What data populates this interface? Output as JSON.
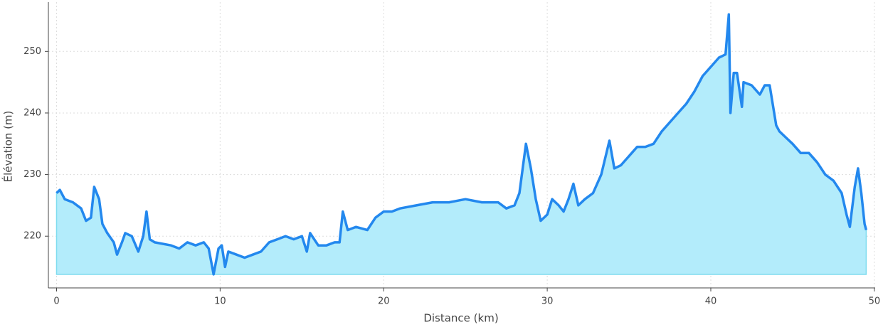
{
  "chart_data": {
    "type": "area",
    "xlabel": "Distance (km)",
    "ylabel": "Élévation (m)",
    "x": [
      0,
      0.2,
      0.5,
      1,
      1.5,
      1.8,
      2.1,
      2.3,
      2.6,
      2.8,
      3.1,
      3.5,
      3.7,
      4,
      4.2,
      4.6,
      5,
      5.3,
      5.5,
      5.7,
      6,
      7,
      7.5,
      8,
      8.5,
      9,
      9.3,
      9.6,
      9.9,
      10.1,
      10.3,
      10.5,
      11,
      11.5,
      12,
      12.5,
      13,
      13.5,
      14,
      14.5,
      15,
      15.3,
      15.5,
      16,
      16.5,
      17,
      17.3,
      17.5,
      17.8,
      18.3,
      19,
      19.5,
      20,
      20.5,
      21,
      22,
      23,
      24,
      25,
      26,
      27,
      27.5,
      28,
      28.3,
      28.7,
      29,
      29.3,
      29.6,
      30,
      30.3,
      30.7,
      31,
      31.3,
      31.6,
      31.9,
      32.3,
      32.8,
      33.3,
      33.8,
      34.1,
      34.5,
      35,
      35.5,
      36,
      36.5,
      37,
      37.5,
      38,
      38.5,
      39,
      39.5,
      40,
      40.5,
      40.9,
      41.1,
      41.2,
      41.4,
      41.6,
      41.9,
      42,
      42.5,
      43,
      43.3,
      43.6,
      44,
      44.2,
      44.6,
      45,
      45.5,
      46,
      46.5,
      47,
      47.5,
      48,
      48.3,
      48.5,
      48.8,
      49,
      49.2,
      49.4,
      49.5
    ],
    "series": [
      {
        "name": "Élévation",
        "color": "#2388ee",
        "fill": "#b3ecfb",
        "values": [
          227,
          227.5,
          226,
          225.5,
          224.5,
          222.5,
          223,
          228,
          226,
          222,
          220.5,
          219,
          217,
          219,
          220.5,
          220,
          217.5,
          220,
          224,
          219.5,
          219,
          218.5,
          218,
          219,
          218.5,
          219,
          218,
          213.8,
          218,
          218.5,
          215,
          217.5,
          217,
          216.5,
          217,
          217.5,
          219,
          219.5,
          220,
          219.5,
          220,
          217.5,
          220.5,
          218.5,
          218.5,
          219,
          219,
          224,
          221,
          221.5,
          221,
          223,
          224,
          224,
          224.5,
          225,
          225.5,
          225.5,
          226,
          225.5,
          225.5,
          224.5,
          225,
          227,
          235,
          231,
          226,
          222.5,
          223.5,
          226,
          225,
          224,
          226,
          228.5,
          225,
          226,
          227,
          230,
          235.5,
          231,
          231.5,
          233,
          234.5,
          234.5,
          235,
          237,
          238.5,
          240,
          241.5,
          243.5,
          246,
          247.5,
          249,
          249.5,
          256,
          240,
          246.5,
          246.5,
          241,
          245,
          244.5,
          243,
          244.5,
          244.5,
          238,
          237,
          236,
          235,
          233.5,
          233.5,
          232,
          230,
          229,
          227,
          223.5,
          221.5,
          228,
          231,
          227,
          222,
          221
        ]
      }
    ],
    "xlim": [
      -0.5,
      50.05
    ],
    "ylim": [
      211.6,
      258
    ],
    "xticks": [
      0,
      10,
      20,
      30,
      40,
      50
    ],
    "yticks": [
      220,
      230,
      240,
      250
    ],
    "grid": true
  }
}
